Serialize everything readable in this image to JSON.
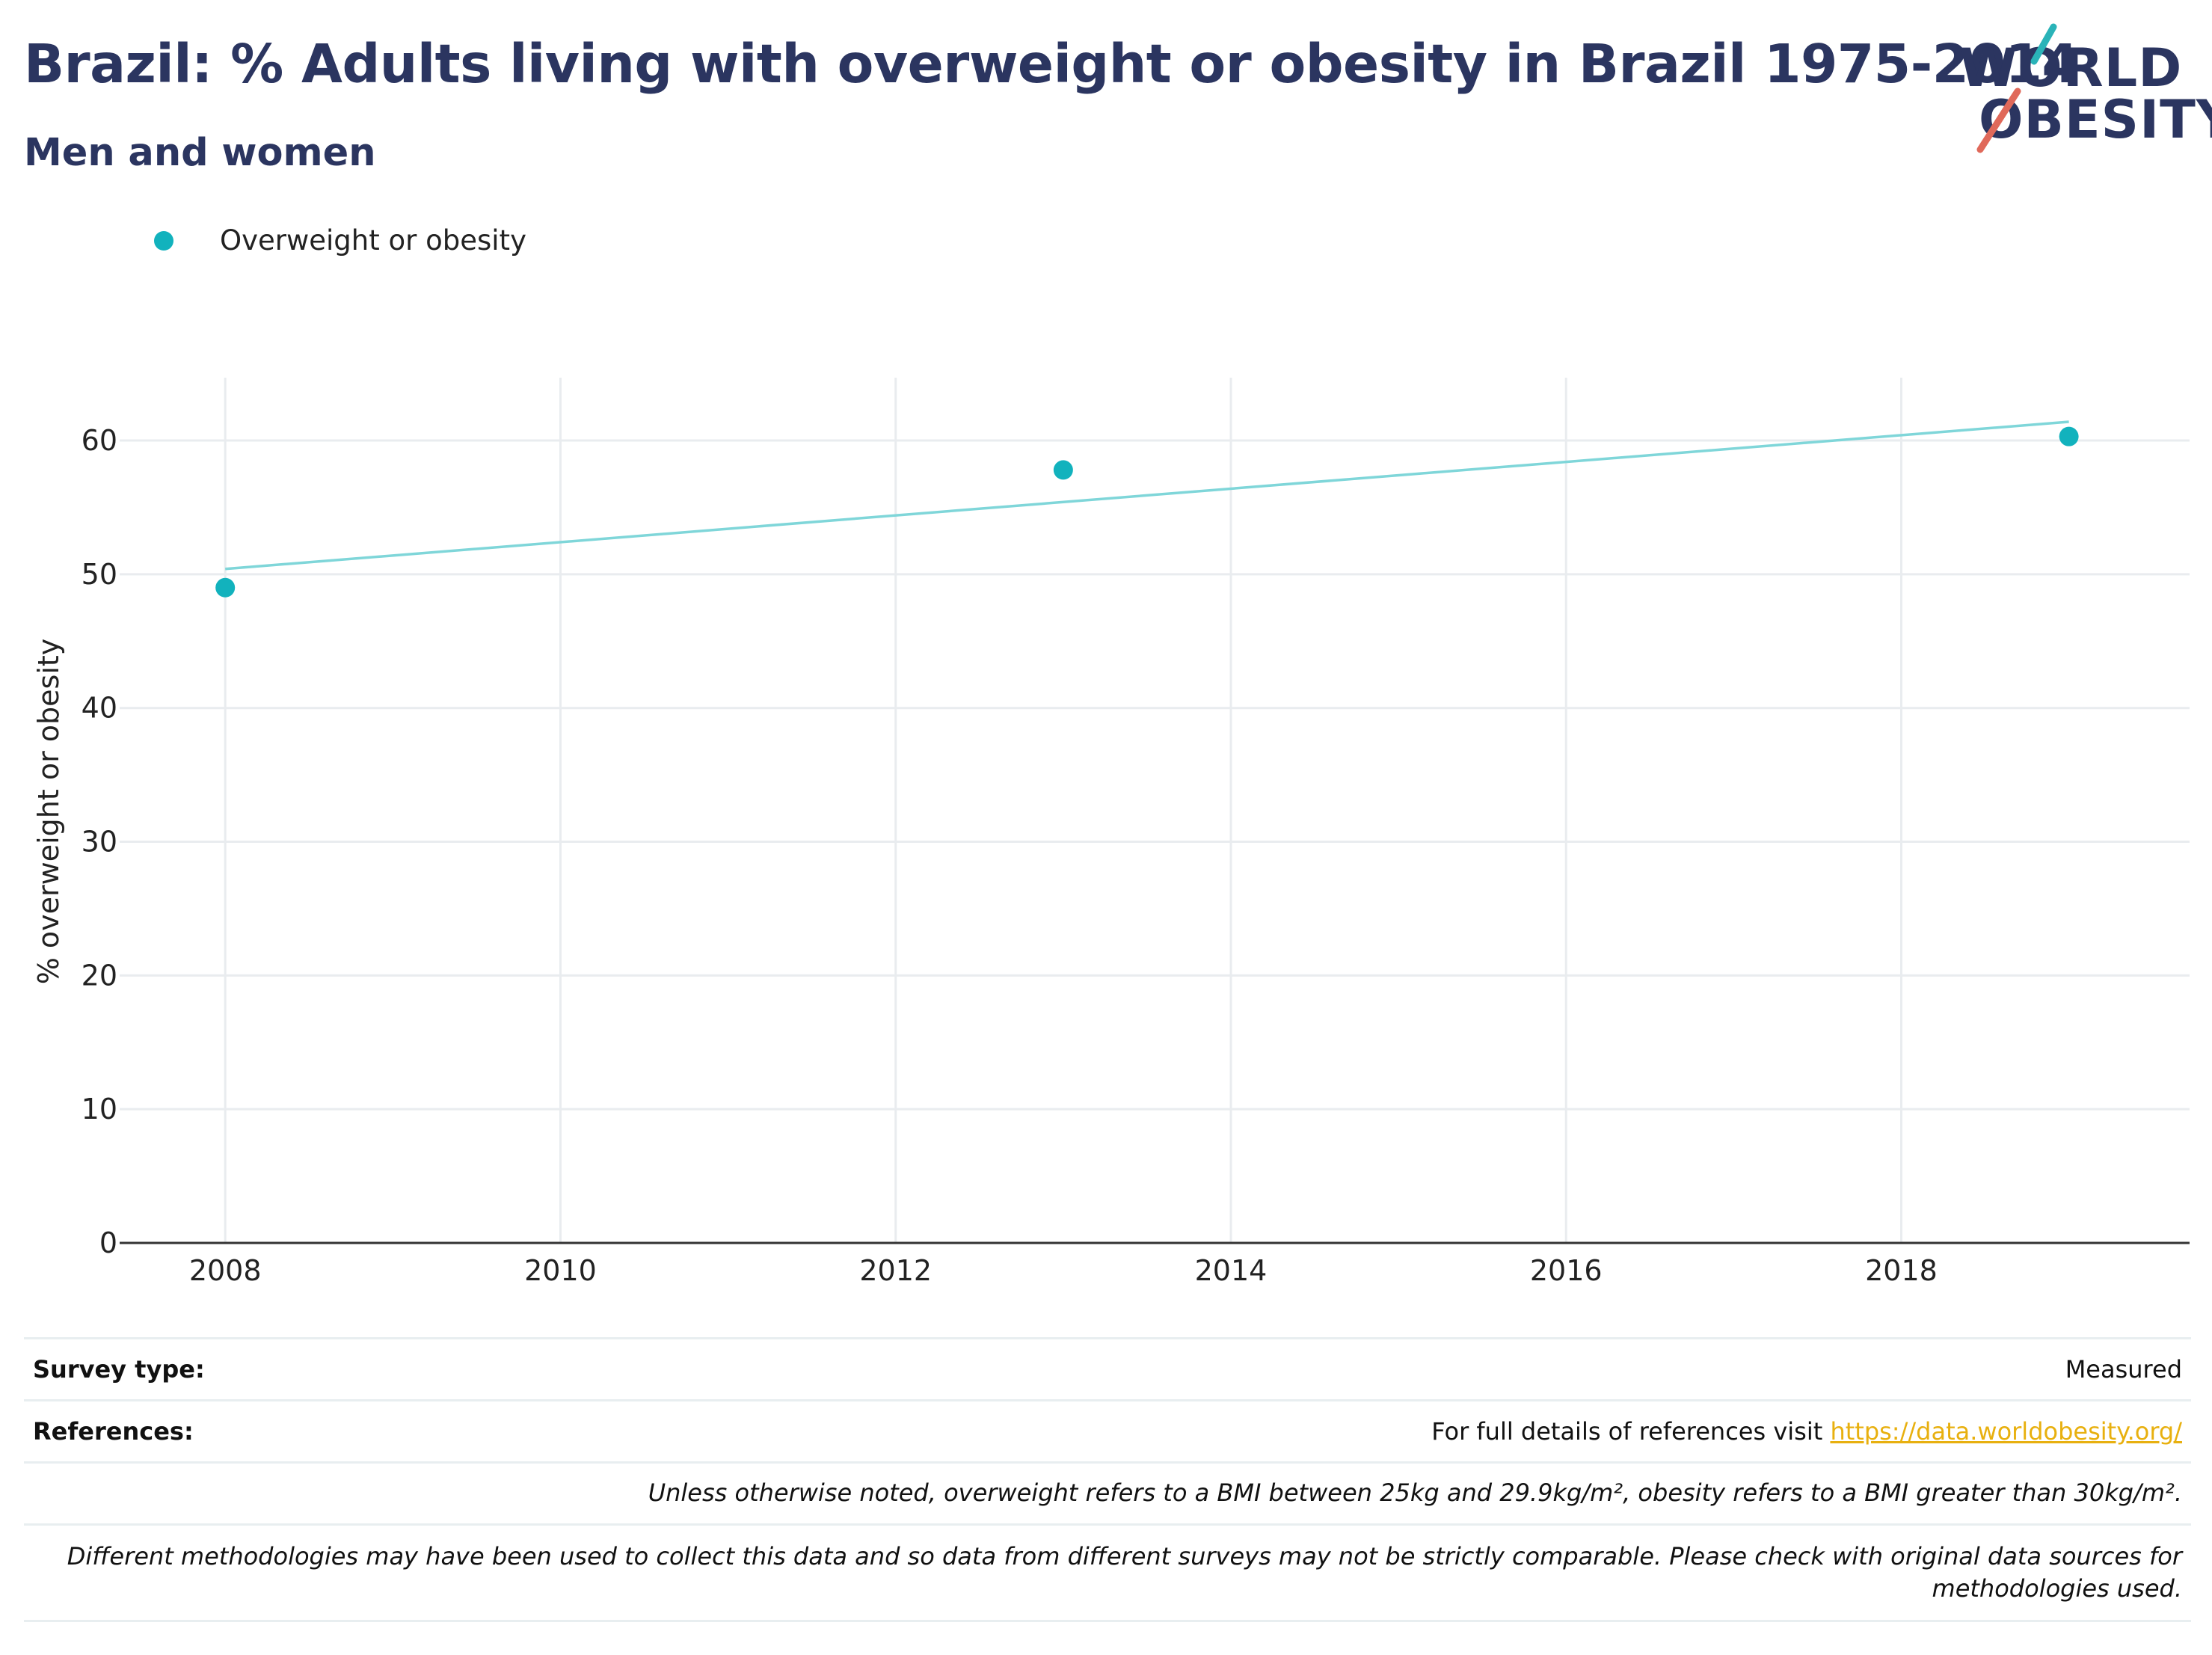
{
  "header": {
    "title": "Brazil: % Adults living with overweight or obesity in Brazil 1975-2014",
    "subtitle": "Men and women"
  },
  "logo": {
    "line1": "WORLD",
    "line2": "OBESITY",
    "colors": {
      "text": "#2b3560",
      "slash_top": "#2ab3b8",
      "slash_bottom": "#e0695a"
    }
  },
  "legend": {
    "label": "Overweight or obesity",
    "color": "#12b2bd"
  },
  "chart_data": {
    "type": "scatter",
    "ylabel": "% overweight or obesity",
    "xlabel": "",
    "xlim": [
      2007.37,
      2019.72
    ],
    "ylim": [
      0,
      64.7
    ],
    "x_ticks": [
      2008,
      2010,
      2012,
      2014,
      2016,
      2018
    ],
    "y_ticks": [
      0,
      10,
      20,
      30,
      40,
      50,
      60
    ],
    "grid": true,
    "legend_position": "top-left",
    "series": [
      {
        "name": "Overweight or obesity",
        "color": "#12b2bd",
        "points": [
          {
            "x": 2008,
            "y": 49.0
          },
          {
            "x": 2013,
            "y": 57.8
          },
          {
            "x": 2019,
            "y": 60.3
          }
        ]
      }
    ],
    "trendline": {
      "color": "#7fd6d9",
      "points": [
        {
          "x": 2008,
          "y": 50.4
        },
        {
          "x": 2019,
          "y": 61.4
        }
      ]
    }
  },
  "footer": {
    "survey_type_label": "Survey type:",
    "survey_type_value": "Measured",
    "references_label": "References:",
    "references_text": "For full details of references visit",
    "references_link": "https://data.worldobesity.org/",
    "note_bmi": "Unless otherwise noted, overweight refers to a BMI between 25kg and 29.9kg/m², obesity refers to a BMI greater than 30kg/m².",
    "note_methods": "Different methodologies may have been used to collect this data and so data from different surveys may not be strictly comparable. Please check with original data sources for methodologies used."
  }
}
